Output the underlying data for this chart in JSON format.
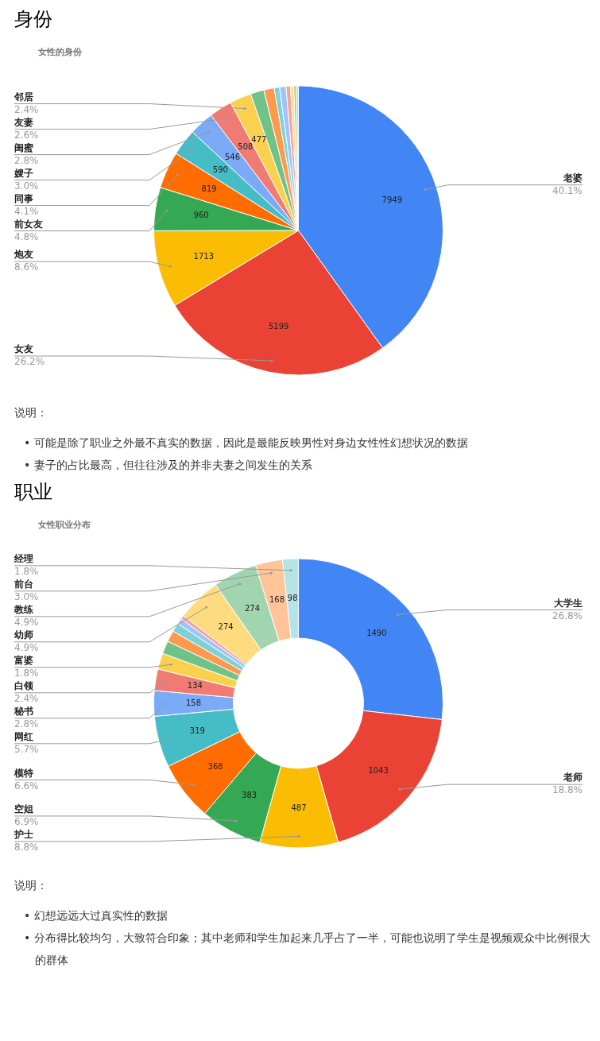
{
  "chart_data": [
    {
      "type": "pie",
      "title": "身份",
      "subtitle": "女性的身份",
      "legend": false,
      "categories": [
        "老婆",
        "女友",
        "炮友",
        "前女友",
        "同事",
        "嫂子",
        "闺蜜",
        "友妻",
        "邻居",
        null,
        null,
        null,
        null,
        null,
        null,
        null,
        null
      ],
      "values": [
        7949,
        5199,
        1713,
        960,
        819,
        590,
        546,
        508,
        477,
        300,
        230,
        120,
        140,
        100,
        70,
        60,
        42
      ],
      "value_labels": [
        "7949",
        "5199",
        "1713",
        "960",
        "819",
        "590",
        "546",
        "508",
        "477",
        null,
        null,
        null,
        null,
        null,
        null,
        null,
        null
      ],
      "colors": [
        "#4285f4",
        "#ea4335",
        "#fbbc04",
        "#34a853",
        "#ff6d01",
        "#46bdc6",
        "#7baaf7",
        "#f07b72",
        "#fcd04f",
        "#71c287",
        "#ff994d",
        "#7ed1d7",
        "#a1c2fa",
        "#f4a29c",
        "#fddb7e",
        "#a0d5af",
        "#ffc599"
      ],
      "annotations": [
        "说明：",
        "• 可能是除了职业之外最不真实的数据，因此是最能反映男性对身边女性性幻想状况的数据",
        "• 妻子的占比最高，但往往涉及的并非夫妻之间发生的关系",
        {
          "text": "40.1%",
          "x": "老婆"
        },
        {
          "text": "26.2%",
          "x": "女友"
        },
        {
          "text": "8.6%",
          "x": "炮友"
        },
        {
          "text": "4.8%",
          "x": "前女友"
        },
        {
          "text": "4.1%",
          "x": "同事"
        },
        {
          "text": "3.0%",
          "x": "嫂子"
        },
        {
          "text": "2.8%",
          "x": "闺蜜"
        },
        {
          "text": "2.6%",
          "x": "友妻"
        },
        {
          "text": "2.4%",
          "x": "邻居"
        }
      ]
    },
    {
      "type": "donut",
      "title": "职业",
      "subtitle": "女性职业分布",
      "legend": false,
      "categories": [
        "大学生",
        "老师",
        "护士",
        "空姐",
        "模特",
        "网红",
        "秘书",
        "白领",
        "富婆",
        null,
        null,
        null,
        null,
        null,
        "幼师",
        "教练",
        "前台",
        "经理"
      ],
      "values": [
        1490,
        1043,
        487,
        383,
        368,
        319,
        158,
        134,
        100,
        80,
        70,
        55,
        35,
        24,
        274,
        274,
        168,
        98
      ],
      "value_labels": [
        "1490",
        "1043",
        "487",
        "383",
        "368",
        "319",
        "158",
        "134",
        null,
        null,
        null,
        null,
        null,
        null,
        "274",
        "274",
        "168",
        "98"
      ],
      "colors": [
        "#4285f4",
        "#ea4335",
        "#fbbc04",
        "#34a853",
        "#ff6d01",
        "#46bdc6",
        "#7baaf7",
        "#f07b72",
        "#fcd04f",
        "#71c287",
        "#ff994d",
        "#7ed1d7",
        "#a1c2fa",
        "#f4a29c",
        "#fddb7e",
        "#a0d5af",
        "#ffc599",
        "#b5e3e6"
      ],
      "annotations": [
        "说明：",
        "• 幻想远远大过真实性的数据",
        "• 分布得比较均匀，大致符合印象；其中老师和学生加起来几乎占了一半，可能也说明了学生是视频观众中比例很大的群体",
        {
          "text": "26.8%",
          "x": "大学生"
        },
        {
          "text": "18.8%",
          "x": "老师"
        },
        {
          "text": "8.8%",
          "x": "护士"
        },
        {
          "text": "6.9%",
          "x": "空姐"
        },
        {
          "text": "6.6%",
          "x": "模特"
        },
        {
          "text": "5.7%",
          "x": "网红"
        },
        {
          "text": "2.8%",
          "x": "秘书"
        },
        {
          "text": "2.4%",
          "x": "白领"
        },
        {
          "text": "1.8%",
          "x": "富婆"
        },
        {
          "text": "4.9%",
          "x": "幼师"
        },
        {
          "text": "4.9%",
          "x": "教练"
        },
        {
          "text": "3.0%",
          "x": "前台"
        },
        {
          "text": "1.8%",
          "x": "经理"
        }
      ]
    }
  ]
}
